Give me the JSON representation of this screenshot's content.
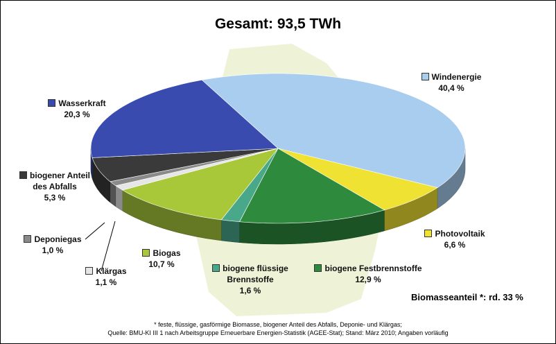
{
  "chart_data": {
    "type": "pie",
    "title": "Gesamt: 93,5 TWh",
    "categories": [
      "Windenergie",
      "Photovoltaik",
      "biogene Festbrennstoffe",
      "biogene flüssige Brennstoffe",
      "Biogas",
      "Klärgas",
      "Deponiegas",
      "biogener Anteil des Abfalls",
      "Wasserkraft"
    ],
    "values": [
      40.4,
      6.6,
      12.9,
      1.6,
      10.7,
      1.1,
      1.0,
      5.3,
      20.3
    ],
    "value_labels": [
      "40,4 %",
      "6,6 %",
      "12,9 %",
      "1,6 %",
      "10,7 %",
      "1,1 %",
      "1,0 %",
      "5,3 %",
      "20,3 %"
    ],
    "colors": [
      "#a9cdee",
      "#f0e232",
      "#2e8b3e",
      "#4aa88a",
      "#a8c83a",
      "#e6e6e6",
      "#8a8a8a",
      "#3a3a3a",
      "#3a4bb0"
    ],
    "annotation": "Biomasseanteil *: rd. 33 %",
    "footnotes": [
      "* feste, flüssige, gasförmige Biomasse, biogener Anteil des Abfalls, Deponie- und Klärgas;",
      "Quelle: BMU-KI III 1 nach Arbeitsgruppe Erneuerbare Energien-Statistik (AGEE-Stat); Stand: März 2010; Angaben vorläufig"
    ]
  }
}
